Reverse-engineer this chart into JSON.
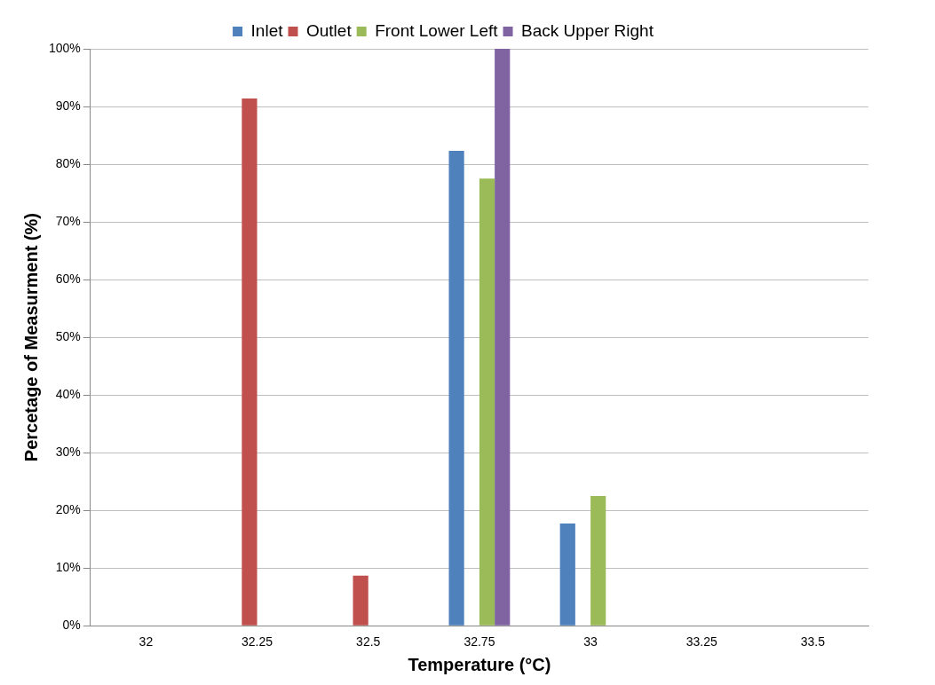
{
  "chart_data": {
    "type": "bar",
    "xlabel": "Temperature (°C)",
    "ylabel": "Percetage of Measurment (%)",
    "categories": [
      "32",
      "32.25",
      "32.5",
      "32.75",
      "33",
      "33.25",
      "33.5"
    ],
    "series": [
      {
        "name": "Inlet",
        "color": "#4f81bd",
        "values": [
          0,
          0,
          0,
          82.3,
          17.7,
          0,
          0
        ]
      },
      {
        "name": "Outlet",
        "color": "#c0504d",
        "values": [
          0,
          91.4,
          8.7,
          0,
          0,
          0,
          0
        ]
      },
      {
        "name": "Front Lower Left",
        "color": "#9bbb59",
        "values": [
          0,
          0,
          0,
          77.5,
          22.5,
          0,
          0
        ]
      },
      {
        "name": "Back Upper Right",
        "color": "#8064a2",
        "values": [
          0,
          0,
          0,
          100,
          0,
          0,
          0
        ]
      }
    ],
    "ylim": [
      0,
      100
    ],
    "yticks": [
      {
        "value": 0,
        "label": "0%"
      },
      {
        "value": 10,
        "label": "10%"
      },
      {
        "value": 20,
        "label": "20%"
      },
      {
        "value": 30,
        "label": "30%"
      },
      {
        "value": 40,
        "label": "40%"
      },
      {
        "value": 50,
        "label": "50%"
      },
      {
        "value": 60,
        "label": "60%"
      },
      {
        "value": 70,
        "label": "70%"
      },
      {
        "value": 80,
        "label": "80%"
      },
      {
        "value": 90,
        "label": "90%"
      },
      {
        "value": 100,
        "label": "100%"
      }
    ],
    "grid": "y",
    "legend": "top"
  }
}
